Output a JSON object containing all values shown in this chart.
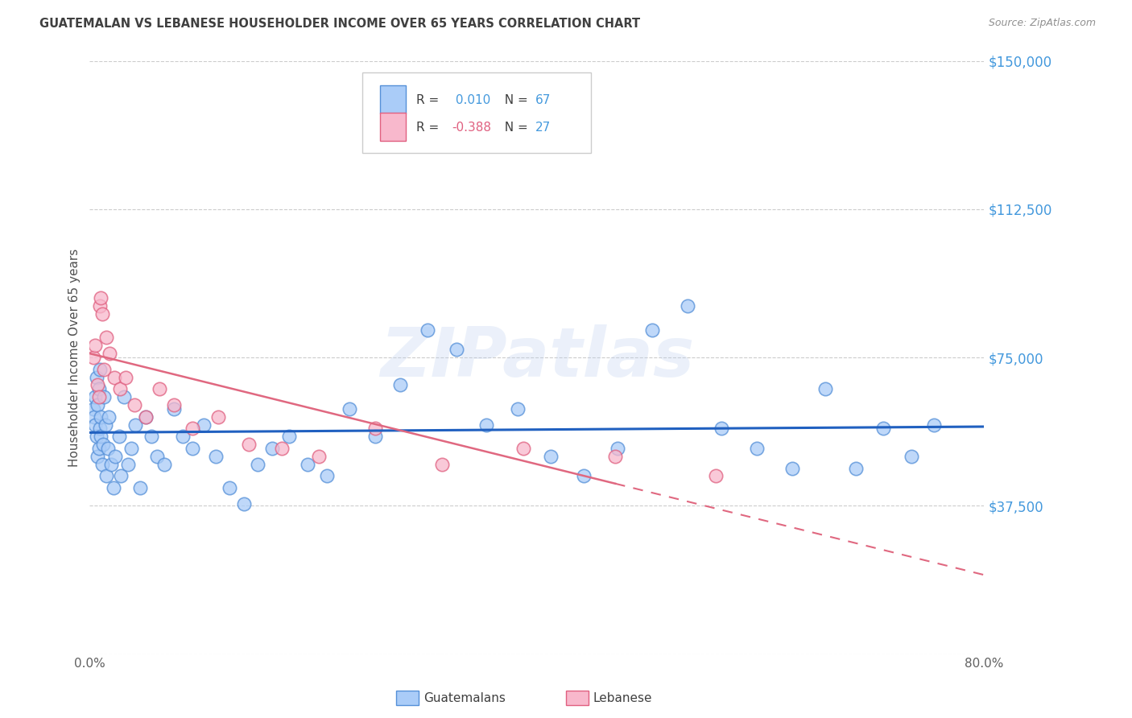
{
  "title": "GUATEMALAN VS LEBANESE HOUSEHOLDER INCOME OVER 65 YEARS CORRELATION CHART",
  "source": "Source: ZipAtlas.com",
  "ylabel": "Householder Income Over 65 years",
  "xlim": [
    0,
    0.8
  ],
  "ylim": [
    0,
    150000
  ],
  "yticks": [
    0,
    37500,
    75000,
    112500,
    150000
  ],
  "ytick_labels": [
    "",
    "$37,500",
    "$75,000",
    "$112,500",
    "$150,000"
  ],
  "xticks": [
    0.0,
    0.16,
    0.32,
    0.48,
    0.64,
    0.8
  ],
  "guatemalan_fill": "#aaccf8",
  "guatemalan_edge": "#5590d8",
  "lebanese_fill": "#f8b8cc",
  "lebanese_edge": "#e06080",
  "guatemalan_line_color": "#2060c0",
  "lebanese_line_color": "#e06880",
  "background_color": "#ffffff",
  "grid_color": "#cccccc",
  "title_color": "#404040",
  "source_color": "#909090",
  "ytick_color": "#4499dd",
  "r_guatemalan": 0.01,
  "n_guatemalan": 67,
  "r_lebanese": -0.388,
  "n_lebanese": 27,
  "guatemalan_x": [
    0.003,
    0.004,
    0.005,
    0.005,
    0.006,
    0.006,
    0.007,
    0.007,
    0.008,
    0.008,
    0.009,
    0.009,
    0.01,
    0.01,
    0.011,
    0.012,
    0.013,
    0.014,
    0.015,
    0.016,
    0.017,
    0.019,
    0.021,
    0.023,
    0.026,
    0.028,
    0.031,
    0.034,
    0.037,
    0.041,
    0.045,
    0.05,
    0.055,
    0.06,
    0.067,
    0.075,
    0.083,
    0.092,
    0.102,
    0.113,
    0.125,
    0.138,
    0.15,
    0.163,
    0.178,
    0.195,
    0.212,
    0.232,
    0.255,
    0.278,
    0.302,
    0.328,
    0.355,
    0.383,
    0.412,
    0.442,
    0.472,
    0.503,
    0.535,
    0.565,
    0.597,
    0.628,
    0.658,
    0.685,
    0.71,
    0.735,
    0.755
  ],
  "guatemalan_y": [
    62000,
    60000,
    58000,
    65000,
    55000,
    70000,
    63000,
    50000,
    67000,
    52000,
    57000,
    72000,
    60000,
    55000,
    48000,
    53000,
    65000,
    58000,
    45000,
    52000,
    60000,
    48000,
    42000,
    50000,
    55000,
    45000,
    65000,
    48000,
    52000,
    58000,
    42000,
    60000,
    55000,
    50000,
    48000,
    62000,
    55000,
    52000,
    58000,
    50000,
    42000,
    38000,
    48000,
    52000,
    55000,
    48000,
    45000,
    62000,
    55000,
    68000,
    82000,
    77000,
    58000,
    62000,
    50000,
    45000,
    52000,
    82000,
    88000,
    57000,
    52000,
    47000,
    67000,
    47000,
    57000,
    50000,
    58000
  ],
  "lebanese_x": [
    0.003,
    0.005,
    0.007,
    0.008,
    0.009,
    0.01,
    0.011,
    0.013,
    0.015,
    0.018,
    0.022,
    0.027,
    0.032,
    0.04,
    0.05,
    0.062,
    0.075,
    0.092,
    0.115,
    0.142,
    0.172,
    0.205,
    0.255,
    0.315,
    0.388,
    0.47,
    0.56
  ],
  "lebanese_y": [
    75000,
    78000,
    68000,
    65000,
    88000,
    90000,
    86000,
    72000,
    80000,
    76000,
    70000,
    67000,
    70000,
    63000,
    60000,
    67000,
    63000,
    57000,
    60000,
    53000,
    52000,
    50000,
    57000,
    48000,
    52000,
    50000,
    45000
  ],
  "guatemalan_trend_y0": 56000,
  "guatemalan_trend_y1": 57500,
  "lebanese_trend_y0": 76000,
  "lebanese_trend_y1": 20000,
  "watermark": "ZIPatlas"
}
